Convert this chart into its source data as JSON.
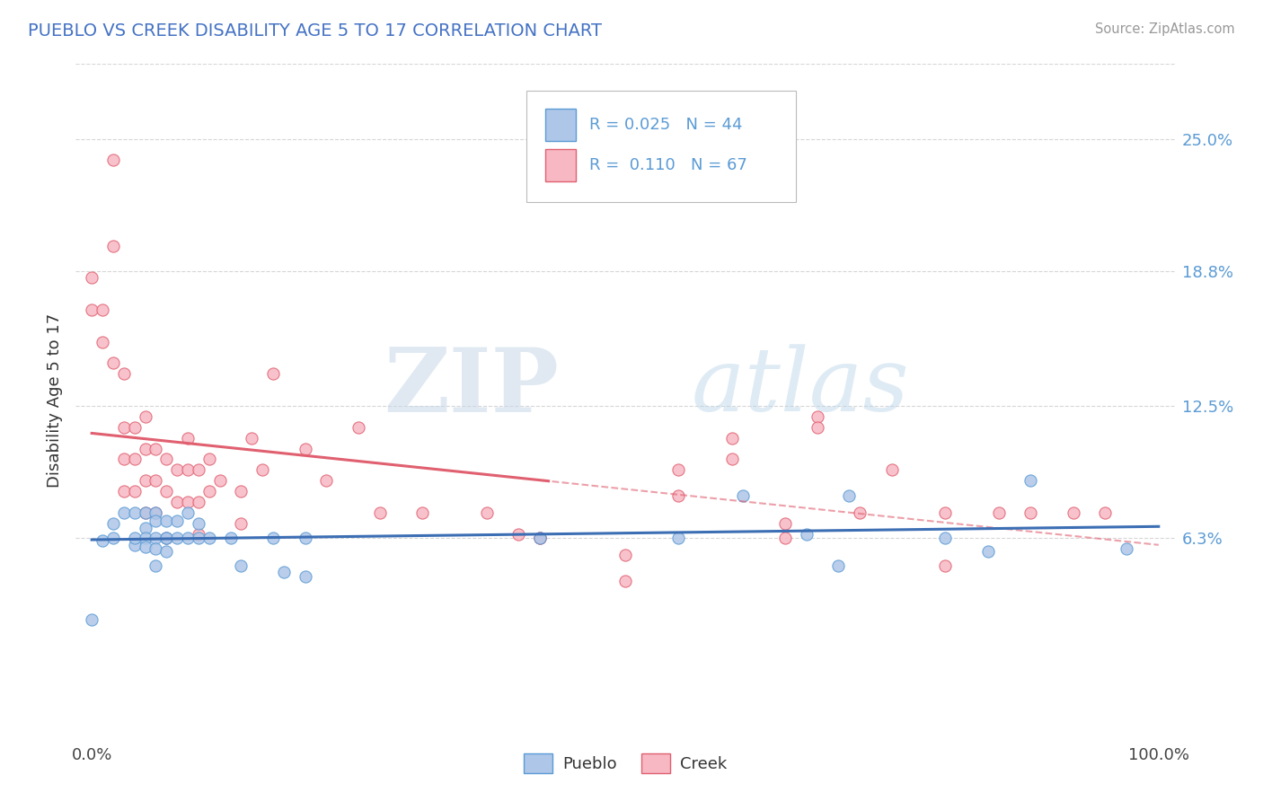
{
  "title": "PUEBLO VS CREEK DISABILITY AGE 5 TO 17 CORRELATION CHART",
  "source": "Source: ZipAtlas.com",
  "ylabel": "Disability Age 5 to 17",
  "xlim": [
    0.0,
    1.0
  ],
  "ylim": [
    -0.03,
    0.285
  ],
  "xtick_labels": [
    "0.0%",
    "100.0%"
  ],
  "ytick_labels": [
    "6.3%",
    "12.5%",
    "18.8%",
    "25.0%"
  ],
  "ytick_values": [
    0.063,
    0.125,
    0.188,
    0.25
  ],
  "watermark_zip": "ZIP",
  "watermark_atlas": "atlas",
  "legend_pueblo_r": "0.025",
  "legend_pueblo_n": "44",
  "legend_creek_r": "0.110",
  "legend_creek_n": "67",
  "pueblo_face_color": "#aec6e8",
  "pueblo_edge_color": "#5b9bd5",
  "creek_face_color": "#f7b8c4",
  "creek_edge_color": "#e06070",
  "pueblo_line_color": "#3c6eb4",
  "creek_line_color": "#e06070",
  "title_color": "#4472c4",
  "annotation_color": "#5b9bd5",
  "background_color": "#ffffff",
  "grid_color": "#cccccc",
  "pueblo_x": [
    0.0,
    0.01,
    0.02,
    0.02,
    0.03,
    0.04,
    0.04,
    0.04,
    0.05,
    0.05,
    0.05,
    0.05,
    0.06,
    0.06,
    0.06,
    0.06,
    0.06,
    0.07,
    0.07,
    0.07,
    0.07,
    0.08,
    0.08,
    0.09,
    0.09,
    0.1,
    0.1,
    0.11,
    0.13,
    0.14,
    0.17,
    0.18,
    0.2,
    0.2,
    0.42,
    0.55,
    0.61,
    0.67,
    0.7,
    0.71,
    0.8,
    0.84,
    0.88,
    0.97
  ],
  "pueblo_y": [
    0.025,
    0.062,
    0.063,
    0.07,
    0.075,
    0.06,
    0.075,
    0.063,
    0.075,
    0.068,
    0.063,
    0.059,
    0.075,
    0.071,
    0.063,
    0.058,
    0.05,
    0.063,
    0.071,
    0.063,
    0.057,
    0.071,
    0.063,
    0.075,
    0.063,
    0.07,
    0.063,
    0.063,
    0.063,
    0.05,
    0.063,
    0.047,
    0.045,
    0.063,
    0.063,
    0.063,
    0.083,
    0.065,
    0.05,
    0.083,
    0.063,
    0.057,
    0.09,
    0.058
  ],
  "creek_x": [
    0.0,
    0.0,
    0.01,
    0.01,
    0.02,
    0.02,
    0.02,
    0.03,
    0.03,
    0.03,
    0.03,
    0.04,
    0.04,
    0.04,
    0.05,
    0.05,
    0.05,
    0.05,
    0.06,
    0.06,
    0.06,
    0.07,
    0.07,
    0.07,
    0.08,
    0.08,
    0.09,
    0.09,
    0.09,
    0.1,
    0.1,
    0.1,
    0.11,
    0.11,
    0.12,
    0.14,
    0.14,
    0.15,
    0.16,
    0.17,
    0.2,
    0.22,
    0.25,
    0.27,
    0.31,
    0.37,
    0.4,
    0.42,
    0.5,
    0.55,
    0.6,
    0.65,
    0.68,
    0.72,
    0.75,
    0.8,
    0.85,
    0.88,
    0.92,
    0.95,
    0.42,
    0.5,
    0.55,
    0.6,
    0.65,
    0.68,
    0.8
  ],
  "creek_y": [
    0.185,
    0.17,
    0.17,
    0.155,
    0.24,
    0.2,
    0.145,
    0.14,
    0.115,
    0.1,
    0.085,
    0.115,
    0.1,
    0.085,
    0.12,
    0.105,
    0.09,
    0.075,
    0.105,
    0.09,
    0.075,
    0.1,
    0.085,
    0.063,
    0.095,
    0.08,
    0.11,
    0.095,
    0.08,
    0.095,
    0.08,
    0.065,
    0.1,
    0.085,
    0.09,
    0.085,
    0.07,
    0.11,
    0.095,
    0.14,
    0.105,
    0.09,
    0.115,
    0.075,
    0.075,
    0.075,
    0.065,
    0.063,
    0.055,
    0.095,
    0.11,
    0.07,
    0.12,
    0.075,
    0.095,
    0.075,
    0.075,
    0.075,
    0.075,
    0.075,
    0.063,
    0.043,
    0.083,
    0.1,
    0.063,
    0.115,
    0.05
  ]
}
